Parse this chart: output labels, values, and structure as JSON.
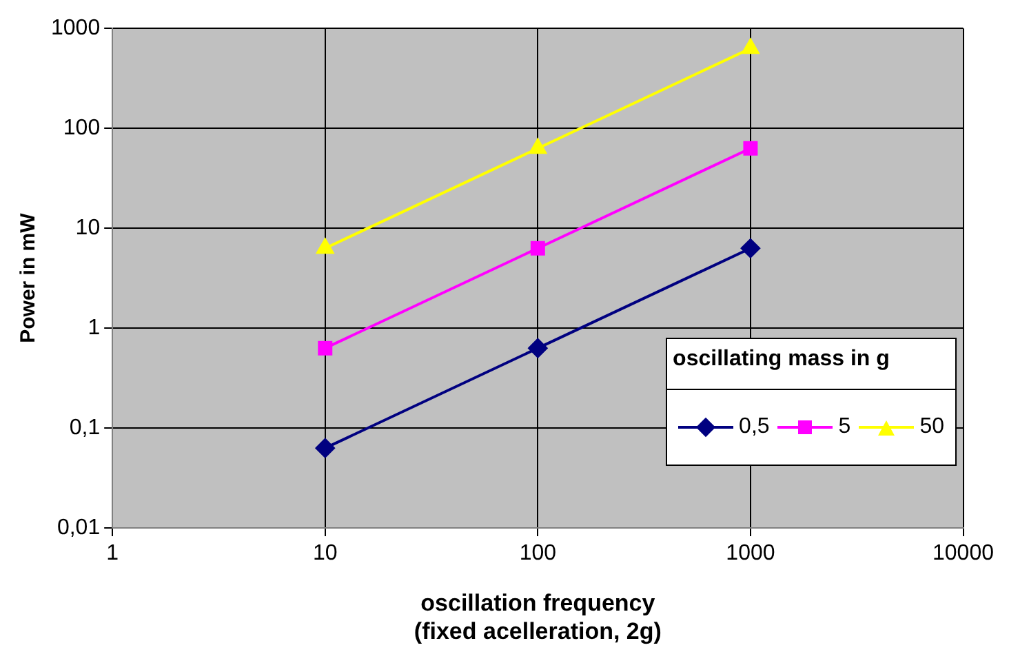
{
  "chart_data": {
    "type": "line",
    "xlabel": "oscillation frequency\n(fixed acelleration, 2g)",
    "ylabel": "Power in mW",
    "legend_title": "oscillating mass in g",
    "legend": "right",
    "log": "xy",
    "grid": true,
    "xlim": [
      1,
      10000
    ],
    "xticks": [
      1,
      10,
      100,
      1000,
      10000
    ],
    "ylim": [
      0.01,
      1000
    ],
    "yticks": [
      {
        "value": 0.01,
        "label": "0,01"
      },
      {
        "value": 0.1,
        "label": "0,1"
      },
      1,
      10,
      100,
      1000
    ],
    "series": [
      {
        "name": "0,5",
        "color": "#000080",
        "marker": "diamond",
        "x": [
          10,
          100,
          1000
        ],
        "values": [
          0.063,
          0.63,
          6.3
        ]
      },
      {
        "name": "5",
        "color": "#ff00ff",
        "marker": "square",
        "x": [
          10,
          100,
          1000
        ],
        "values": [
          0.63,
          6.3,
          63
        ]
      },
      {
        "name": "50",
        "color": "#ffff00",
        "marker": "triangle",
        "x": [
          10,
          100,
          1000
        ],
        "values": [
          6.3,
          63,
          630
        ]
      }
    ]
  }
}
